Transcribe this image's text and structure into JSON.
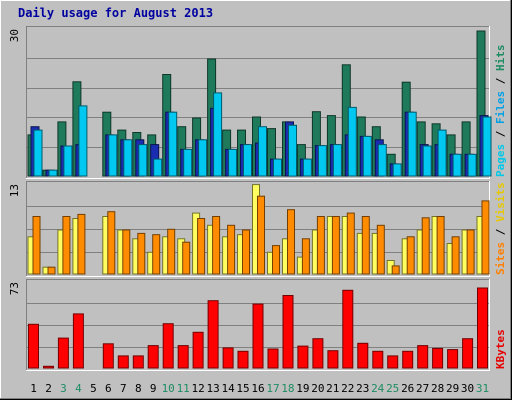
{
  "chart_data": {
    "type": "bar",
    "title": "Daily usage for August 2013",
    "categories": [
      "1",
      "2",
      "3",
      "4",
      "5",
      "6",
      "7",
      "8",
      "9",
      "10",
      "11",
      "12",
      "13",
      "14",
      "15",
      "16",
      "17",
      "18",
      "19",
      "20",
      "21",
      "22",
      "23",
      "24",
      "25",
      "26",
      "27",
      "28",
      "29",
      "30",
      "31"
    ],
    "day_label_colors": [
      "#000000",
      "#000000",
      "#1e8c64",
      "#1e8c64",
      "#000000",
      "#000000",
      "#000000",
      "#000000",
      "#000000",
      "#1e8c64",
      "#1e8c64",
      "#000000",
      "#000000",
      "#000000",
      "#000000",
      "#000000",
      "#1e8c64",
      "#1e8c64",
      "#000000",
      "#000000",
      "#000000",
      "#000000",
      "#000000",
      "#1e8c64",
      "#1e8c64",
      "#000000",
      "#000000",
      "#000000",
      "#000000",
      "#000000",
      "#1e8c64"
    ],
    "panels": [
      {
        "max_label": "30",
        "max": 30,
        "legend": [
          {
            "text": "Pages",
            "color": "#00c8e6"
          },
          {
            "text": " / ",
            "color": "#000000"
          },
          {
            "text": "Files",
            "color": "#00a0e6"
          },
          {
            "text": " / ",
            "color": "#000000"
          },
          {
            "text": "Hits",
            "color": "#1e8c64"
          }
        ],
        "series": [
          {
            "name": "Hits",
            "color": "#1e7a5a",
            "values": [
              8.5,
              1.2,
              11.2,
              19.5,
              0,
              13.2,
              9.5,
              9,
              8.5,
              21,
              10.2,
              12,
              24.2,
              9.5,
              9.5,
              12.2,
              9.8,
              11.2,
              6.5,
              13.3,
              12.5,
              23,
              12.2,
              10.2,
              4.5,
              19.4,
              11.2,
              10.8,
              8.5,
              11.2,
              30
            ]
          },
          {
            "name": "Files",
            "color": "#1a2cb0",
            "values": [
              10.2,
              1.2,
              6.2,
              6.5,
              0,
              8.5,
              7.5,
              7.5,
              6.5,
              13.2,
              5.5,
              7.5,
              14,
              5.5,
              6.5,
              6.8,
              3.5,
              11.2,
              3.5,
              6.3,
              6.5,
              8.5,
              8.2,
              7.5,
              2.5,
              13.2,
              6.5,
              6.5,
              4.5,
              4.5,
              12.5
            ]
          },
          {
            "name": "Pages",
            "color": "#00c8f0",
            "values": [
              9.5,
              1.2,
              6.2,
              14.5,
              0,
              8.5,
              7.5,
              6.5,
              3.5,
              13.2,
              5.5,
              7.5,
              17.2,
              5.5,
              6.5,
              10.2,
              3.5,
              10.5,
              3.5,
              6.3,
              6.5,
              14.2,
              8.2,
              6.5,
              2.5,
              13.2,
              6.2,
              9.5,
              4.5,
              4.5,
              12.2
            ]
          }
        ]
      },
      {
        "max_label": "13",
        "max": 13,
        "legend": [
          {
            "text": "Sites",
            "color": "#ff8000"
          },
          {
            "text": " / ",
            "color": "#000000"
          },
          {
            "text": "Visits",
            "color": "#e6c800"
          },
          {
            "text": "",
            "color": "#000000"
          }
        ],
        "series": [
          {
            "name": "Visits",
            "color": "#ffff60",
            "values": [
              5.5,
              1,
              6.5,
              8.2,
              0,
              8.5,
              6.5,
              5.2,
              3.2,
              5.5,
              5.2,
              9,
              7.2,
              5.5,
              5.8,
              13.2,
              3.2,
              5.2,
              2.5,
              6.5,
              8.5,
              8.5,
              6,
              6,
              2,
              5.2,
              6.5,
              8.5,
              4.5,
              6.5,
              8.5
            ]
          },
          {
            "name": "Sites",
            "color": "#ff8c00",
            "values": [
              8.5,
              1,
              8.5,
              8.8,
              0,
              9.2,
              6.5,
              6,
              5.8,
              6.6,
              4.7,
              8.2,
              8.5,
              7.2,
              6.5,
              11.5,
              4.2,
              9.5,
              5.2,
              8.5,
              8.5,
              9,
              8.5,
              7.2,
              1.2,
              5.5,
              8.3,
              8.5,
              5.5,
              6.5,
              10.8
            ]
          }
        ]
      },
      {
        "max_label": "73",
        "max": 73,
        "legend": [
          {
            "text": "KBytes",
            "color": "#e60000"
          }
        ],
        "series": [
          {
            "name": "KBytes",
            "color": "#ff0000",
            "values": [
              38,
              1.5,
              26,
              47,
              0,
              21,
              10.5,
              10.5,
              19.5,
              38.5,
              19.5,
              31,
              58.5,
              17.5,
              14.5,
              55.5,
              16.5,
              63,
              19,
              25.5,
              15,
              67.5,
              21.5,
              14.5,
              10.5,
              14.5,
              19.5,
              17,
              16,
              25.5,
              69.5
            ]
          }
        ]
      }
    ]
  }
}
